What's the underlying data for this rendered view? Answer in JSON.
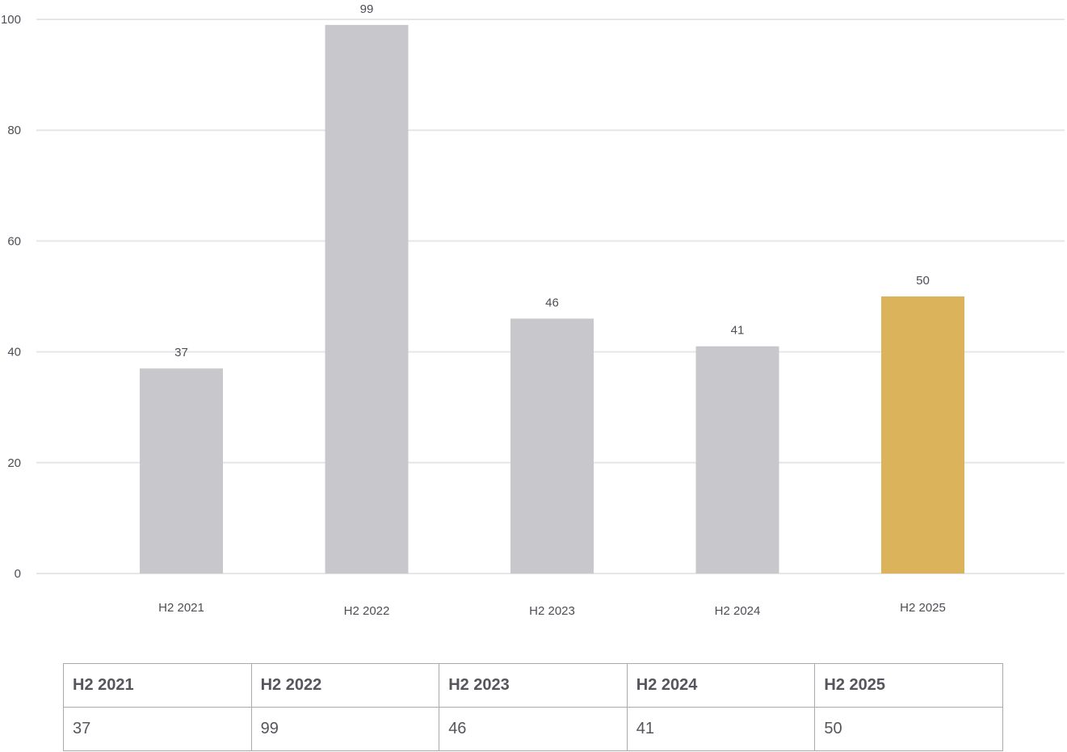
{
  "chart_data": {
    "type": "bar",
    "categories": [
      "H2 2021",
      "H2 2022",
      "H2 2023",
      "H2 2024",
      "H2 2025"
    ],
    "values": [
      37,
      99,
      46,
      41,
      50
    ],
    "bar_colors": [
      "#c8c8cc",
      "#c8c8cc",
      "#c8c8cc",
      "#c8c8cc",
      "#dbb35a"
    ],
    "gridline_color": "#e6e6e8",
    "ylim": [
      0,
      100
    ],
    "yticks": [
      0,
      20,
      40,
      60,
      80,
      100
    ],
    "title": "",
    "xlabel": "",
    "ylabel": "",
    "grid": true,
    "legend": "none"
  },
  "table": {
    "headers": [
      "H2 2021",
      "H2 2022",
      "H2 2023",
      "H2 2024",
      "H2 2025"
    ],
    "values": [
      "37",
      "99",
      "46",
      "41",
      "50"
    ]
  }
}
